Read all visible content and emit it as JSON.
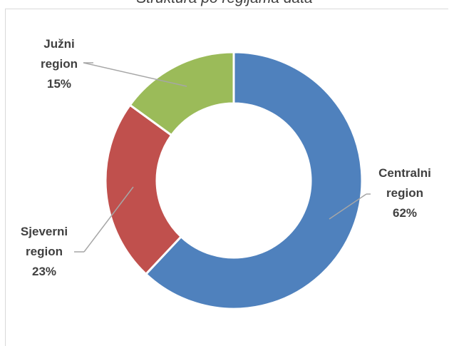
{
  "chart_data": {
    "type": "pie",
    "title": "Struktura po regijama data",
    "labels": [
      "Centralni region",
      "Sjeverni region",
      "Južni region"
    ],
    "values": [
      62,
      23,
      15
    ],
    "colors": [
      "#4f81bd",
      "#c0504d",
      "#9bbb59"
    ],
    "data_labels": [
      [
        "Centralni",
        "region",
        "62%"
      ],
      [
        "Sjeverni",
        "region",
        "23%"
      ],
      [
        "Južni",
        "region",
        "15%"
      ]
    ],
    "donut": true,
    "legend": "none"
  }
}
